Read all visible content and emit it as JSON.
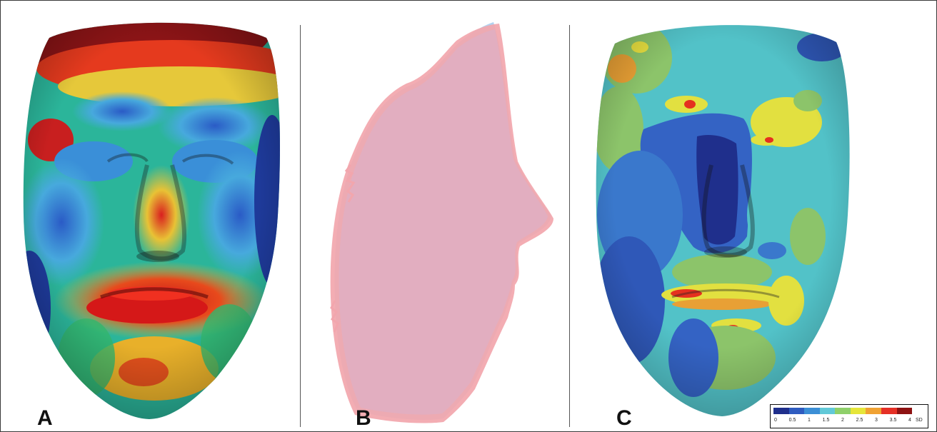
{
  "panels": [
    {
      "label": "A",
      "subject": "heatmap-face-front"
    },
    {
      "label": "B",
      "subject": "overlaid-profile-silhouettes"
    },
    {
      "label": "C",
      "subject": "sd-colormap-face-front"
    }
  ],
  "color_scale": {
    "ticks": [
      "0",
      "0.5",
      "1",
      "1.5",
      "2",
      "2.5",
      "3",
      "3.5",
      "4"
    ],
    "unit": "SD",
    "colors": [
      "#1f2f8c",
      "#2f5cc0",
      "#3c8fd6",
      "#62c9d8",
      "#8fd06a",
      "#e6e63a",
      "#f0a233",
      "#e53026",
      "#8e1212"
    ]
  },
  "colors": {
    "profile_pink": "#f4a3a8",
    "profile_blue": "#a9cdee"
  }
}
